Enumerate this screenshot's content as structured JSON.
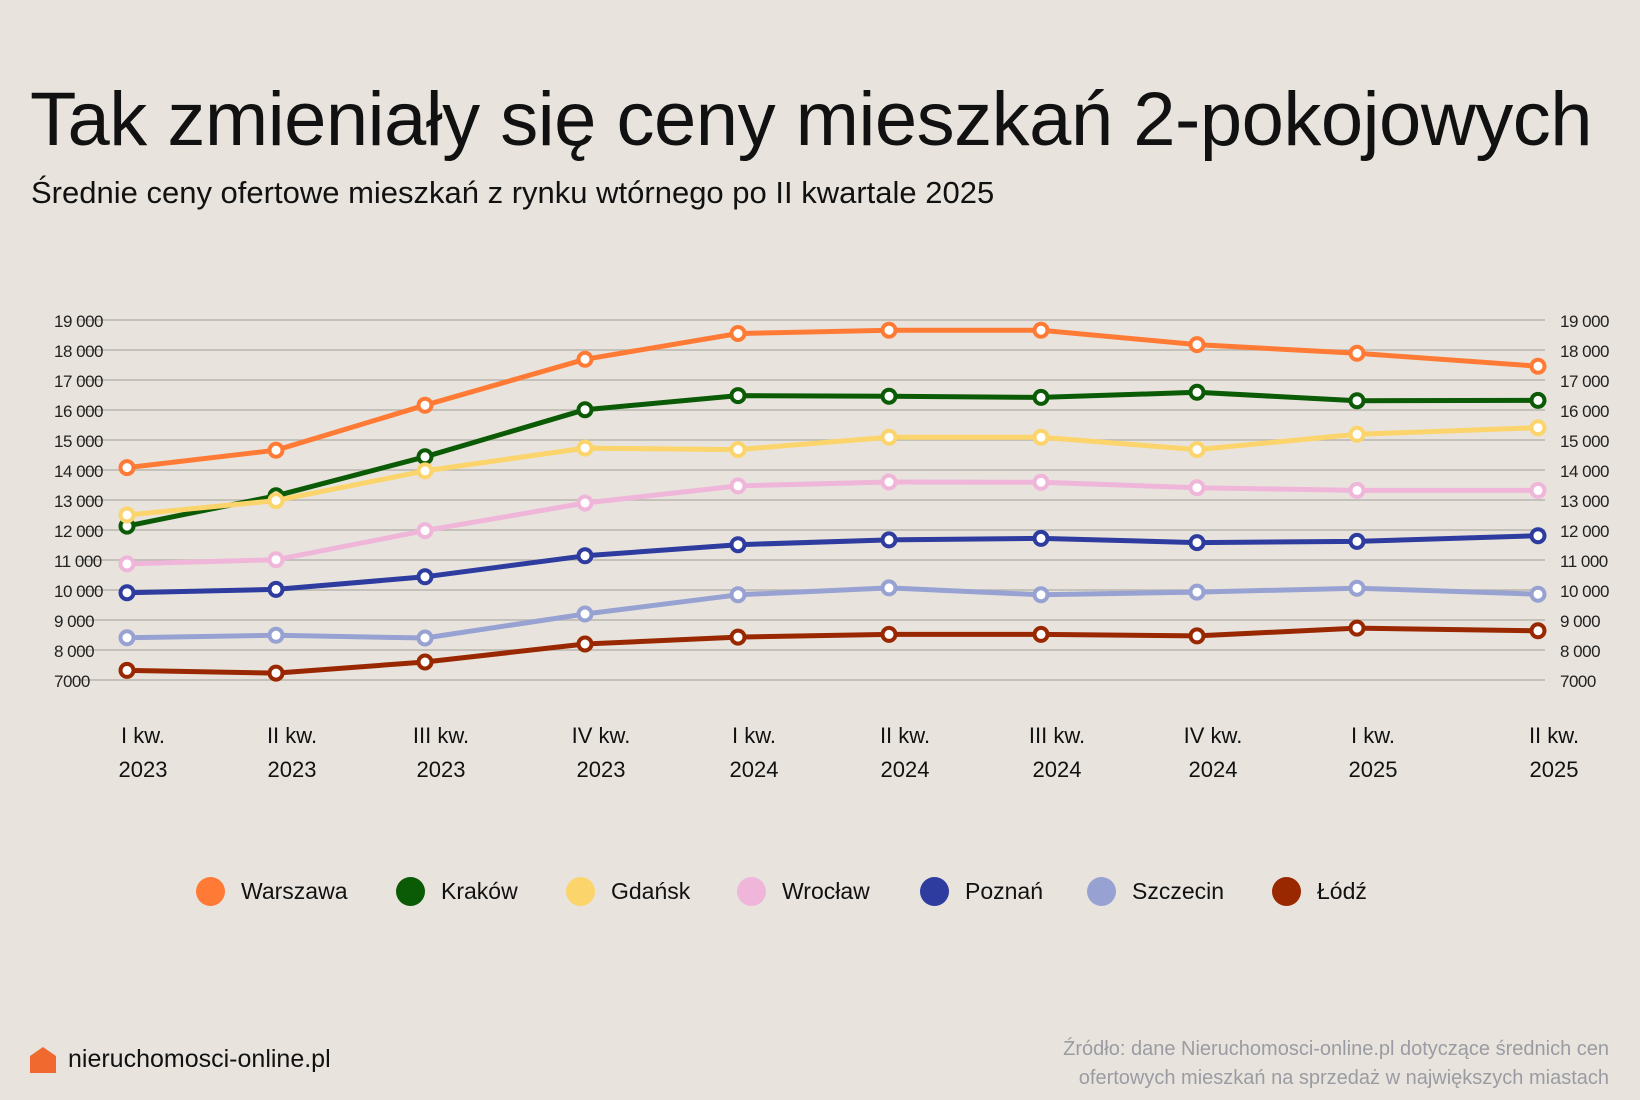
{
  "title": "Tak zmieniały się ceny mieszkań 2-pokojowych",
  "subtitle": "Średnie ceny ofertowe mieszkań z rynku wtórnego po II kwartale 2025",
  "chart_data": {
    "type": "line",
    "categories": [
      [
        "I kw.",
        "2023"
      ],
      [
        "II kw.",
        "2023"
      ],
      [
        "III kw.",
        "2023"
      ],
      [
        "IV kw.",
        "2023"
      ],
      [
        "I kw.",
        "2024"
      ],
      [
        "II kw.",
        "2024"
      ],
      [
        "III kw.",
        "2024"
      ],
      [
        "IV kw.",
        "2024"
      ],
      [
        "I kw.",
        "2025"
      ],
      [
        "II kw.",
        "2025"
      ]
    ],
    "ylim": [
      7000,
      19000
    ],
    "yticks": [
      19000,
      18000,
      17000,
      16000,
      15000,
      14000,
      13000,
      12000,
      11000,
      10000,
      9000,
      8000,
      7000
    ],
    "ytick_labels": [
      "19 000",
      "18 000",
      "17 000",
      "16 000",
      "15 000",
      "14 000",
      "13 000",
      "12 000",
      "11 000",
      "10 000",
      "9 000",
      "8 000",
      "7000"
    ],
    "y_axis_sides": [
      "left",
      "right"
    ],
    "grid": true,
    "legend_placement": "bottom",
    "series": [
      {
        "name": "Warszawa",
        "color": "#ff7b35",
        "values": [
          14080,
          14660,
          16160,
          17690,
          18550,
          18660,
          18660,
          18180,
          17890,
          17460
        ]
      },
      {
        "name": "Kraków",
        "color": "#0b5a05",
        "values": [
          12130,
          13140,
          14440,
          16010,
          16480,
          16460,
          16420,
          16590,
          16310,
          16320
        ]
      },
      {
        "name": "Gdańsk",
        "color": "#fcd46c",
        "values": [
          12500,
          12980,
          13970,
          14730,
          14680,
          15090,
          15090,
          14680,
          15190,
          15410
        ]
      },
      {
        "name": "Wrocław",
        "color": "#efb6da",
        "values": [
          10870,
          11010,
          11980,
          12900,
          13470,
          13600,
          13590,
          13410,
          13320,
          13320
        ]
      },
      {
        "name": "Poznań",
        "color": "#2d3c9e",
        "values": [
          9910,
          10020,
          10440,
          11140,
          11510,
          11670,
          11720,
          11580,
          11620,
          11810
        ]
      },
      {
        "name": "Szczecin",
        "color": "#98a2d2",
        "values": [
          8410,
          8490,
          8400,
          9200,
          9840,
          10070,
          9840,
          9930,
          10060,
          9860
        ]
      },
      {
        "name": "Łódź",
        "color": "#992800",
        "values": [
          7320,
          7230,
          7600,
          8200,
          8430,
          8520,
          8520,
          8470,
          8730,
          8640
        ]
      }
    ]
  },
  "footer": {
    "logo_text": "nieruchomosci-online.pl",
    "logo_color": "#f06a30",
    "source_line1": "Źródło: dane Nieruchomosci-online.pl dotyczące średnich cen",
    "source_line2": "ofertowych mieszkań na sprzedaż w największych miastach"
  }
}
